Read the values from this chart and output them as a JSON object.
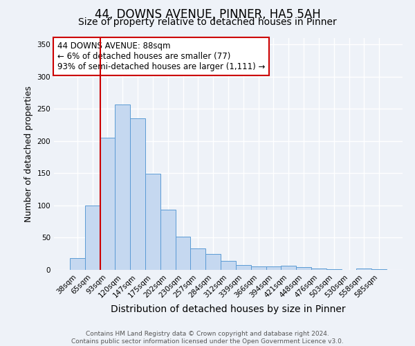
{
  "title": "44, DOWNS AVENUE, PINNER, HA5 5AH",
  "subtitle": "Size of property relative to detached houses in Pinner",
  "xlabel": "Distribution of detached houses by size in Pinner",
  "ylabel": "Number of detached properties",
  "bar_labels": [
    "38sqm",
    "65sqm",
    "93sqm",
    "120sqm",
    "147sqm",
    "175sqm",
    "202sqm",
    "230sqm",
    "257sqm",
    "284sqm",
    "312sqm",
    "339sqm",
    "366sqm",
    "394sqm",
    "421sqm",
    "448sqm",
    "476sqm",
    "503sqm",
    "530sqm",
    "558sqm",
    "585sqm"
  ],
  "bar_values": [
    18,
    100,
    205,
    257,
    235,
    149,
    94,
    52,
    33,
    25,
    14,
    8,
    5,
    5,
    6,
    4,
    2,
    1,
    0,
    2,
    1
  ],
  "bar_color": "#c5d8f0",
  "bar_edge_color": "#5b9bd5",
  "vline_index": 2,
  "vline_color": "#cc0000",
  "annotation_title": "44 DOWNS AVENUE: 88sqm",
  "annotation_line1": "← 6% of detached houses are smaller (77)",
  "annotation_line2": "93% of semi-detached houses are larger (1,111) →",
  "annotation_box_color": "#ffffff",
  "annotation_box_edge": "#cc0000",
  "ylim": [
    0,
    360
  ],
  "yticks": [
    0,
    50,
    100,
    150,
    200,
    250,
    300,
    350
  ],
  "footer_line1": "Contains HM Land Registry data © Crown copyright and database right 2024.",
  "footer_line2": "Contains public sector information licensed under the Open Government Licence v3.0.",
  "bg_color": "#eef2f8",
  "grid_color": "#ffffff",
  "title_fontsize": 12,
  "subtitle_fontsize": 10,
  "xlabel_fontsize": 10,
  "ylabel_fontsize": 9,
  "tick_fontsize": 7.5,
  "annotation_fontsize": 8.5,
  "footer_fontsize": 6.5
}
